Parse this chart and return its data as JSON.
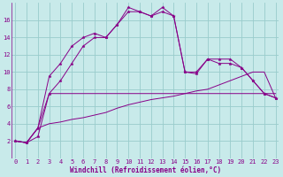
{
  "xlabel": "Windchill (Refroidissement éolien,°C)",
  "x_values": [
    0,
    1,
    2,
    3,
    4,
    5,
    6,
    7,
    8,
    9,
    10,
    11,
    12,
    13,
    14,
    15,
    16,
    17,
    18,
    19,
    20,
    21,
    22,
    23
  ],
  "line1_marked": [
    2,
    1.8,
    2.5,
    7.5,
    9,
    11,
    13,
    14,
    14,
    15.5,
    17.5,
    17,
    16.5,
    17,
    16.5,
    10,
    9.8,
    11.5,
    11,
    11,
    10.5,
    9,
    7.5,
    7
  ],
  "line2_marked": [
    2,
    1.8,
    3.5,
    9.5,
    11,
    13,
    14,
    14.5,
    14,
    15.5,
    17,
    17,
    16.5,
    17.5,
    16.5,
    10,
    10,
    11.5,
    11.5,
    11.5,
    10.5,
    9,
    7.5,
    7
  ],
  "line3_flat": [
    2,
    1.8,
    3.5,
    7.5,
    7.5,
    7.5,
    7.5,
    7.5,
    7.5,
    7.5,
    7.5,
    7.5,
    7.5,
    7.5,
    7.5,
    7.5,
    7.5,
    7.5,
    7.5,
    7.5,
    7.5,
    7.5,
    7.5,
    7.5
  ],
  "line4_diag": [
    2,
    1.8,
    3.5,
    4,
    4.2,
    4.5,
    4.7,
    5.0,
    5.3,
    5.8,
    6.2,
    6.5,
    6.8,
    7.0,
    7.2,
    7.5,
    7.8,
    8.0,
    8.5,
    9.0,
    9.5,
    10,
    10,
    7
  ],
  "line_color": "#880088",
  "bg_color": "#c8eaea",
  "grid_color": "#99cccc",
  "ylim": [
    0,
    18
  ],
  "yticks": [
    2,
    4,
    6,
    8,
    10,
    12,
    14,
    16
  ],
  "xticks": [
    0,
    1,
    2,
    3,
    4,
    5,
    6,
    7,
    8,
    9,
    10,
    11,
    12,
    13,
    14,
    15,
    16,
    17,
    18,
    19,
    20,
    21,
    22,
    23
  ],
  "xlabel_fontsize": 5.5,
  "tick_fontsize": 5.0
}
